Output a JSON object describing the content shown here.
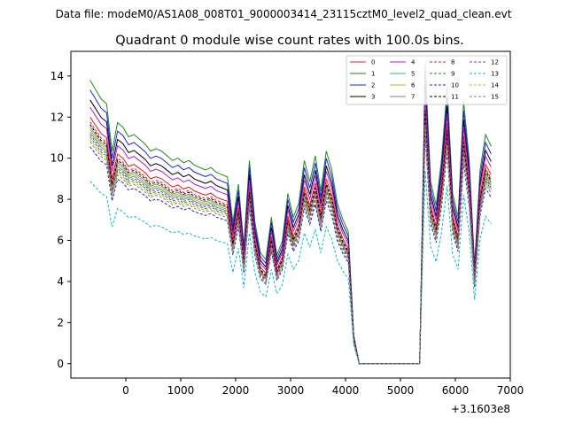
{
  "chart_data": {
    "type": "line",
    "supertitle": "Data file: modeM0/AS1A08_008T01_9000003414_23115cztM0_level2_quad_clean.evt",
    "title": "Quadrant 0 module wise count rates with 100.0s bins.",
    "xlabel": "",
    "ylabel": "",
    "x_offset_label": "+3.1603e8",
    "xlim": [
      -1000,
      7000
    ],
    "ylim": [
      -0.7,
      15.2
    ],
    "x_ticks": [
      0,
      1000,
      2000,
      3000,
      4000,
      5000,
      6000,
      7000
    ],
    "y_ticks": [
      0,
      2,
      4,
      6,
      8,
      10,
      12,
      14
    ],
    "x": [
      -650,
      -550,
      -450,
      -350,
      -250,
      -150,
      -50,
      50,
      150,
      250,
      350,
      450,
      550,
      650,
      750,
      850,
      950,
      1050,
      1150,
      1250,
      1350,
      1450,
      1550,
      1650,
      1750,
      1850,
      1950,
      2050,
      2150,
      2250,
      2350,
      2450,
      2550,
      2650,
      2750,
      2850,
      2950,
      3050,
      3150,
      3250,
      3350,
      3450,
      3550,
      3650,
      3750,
      3850,
      3950,
      4050,
      4150,
      4250,
      4350,
      4450,
      4550,
      4650,
      4750,
      4850,
      4950,
      5050,
      5150,
      5250,
      5350,
      5450,
      5550,
      5650,
      5750,
      5850,
      5950,
      6050,
      6150,
      6250,
      6350,
      6450,
      6550,
      6650
    ],
    "baseline": [
      12.0,
      11.6,
      11.2,
      11.0,
      9.0,
      10.2,
      10.0,
      9.6,
      9.7,
      9.5,
      9.3,
      9.0,
      9.1,
      9.0,
      8.8,
      8.6,
      8.7,
      8.5,
      8.6,
      8.4,
      8.3,
      8.2,
      8.3,
      8.1,
      8.0,
      7.9,
      6.0,
      7.6,
      5.0,
      8.6,
      6.0,
      4.7,
      4.4,
      6.2,
      4.6,
      5.2,
      7.2,
      6.2,
      6.8,
      8.6,
      7.7,
      8.8,
      7.3,
      9.0,
      8.2,
      6.8,
      6.1,
      5.6,
      1.2,
      0.0,
      0.0,
      0.0,
      0.0,
      0.0,
      0.0,
      0.0,
      0.0,
      0.0,
      0.0,
      0.0,
      0.0,
      12.7,
      7.7,
      6.7,
      8.7,
      11.7,
      7.2,
      6.2,
      11.1,
      8.7,
      4.2,
      8.2,
      9.7,
      9.2
    ],
    "legend": {
      "position": "top-right",
      "columns": 4
    },
    "series": [
      {
        "name": "0",
        "color": "#e41a1c",
        "dash": "solid",
        "offset": 0.0
      },
      {
        "name": "1",
        "color": "#1a8c1a",
        "dash": "solid",
        "offset": 1.5
      },
      {
        "name": "2",
        "color": "#1f1fe0",
        "dash": "solid",
        "offset": 1.1
      },
      {
        "name": "3",
        "color": "#000000",
        "dash": "solid",
        "offset": 0.7
      },
      {
        "name": "4",
        "color": "#b01cd9",
        "dash": "solid",
        "offset": 0.4
      },
      {
        "name": "5",
        "color": "#20b2aa",
        "dash": "solid",
        "offset": -0.6
      },
      {
        "name": "6",
        "color": "#c9b400",
        "dash": "solid",
        "offset": -0.5
      },
      {
        "name": "7",
        "color": "#808080",
        "dash": "solid",
        "offset": -0.4
      },
      {
        "name": "8",
        "color": "#e41a1c",
        "dash": "dashed",
        "offset": -0.2
      },
      {
        "name": "9",
        "color": "#1a8c1a",
        "dash": "dashed",
        "offset": -0.8
      },
      {
        "name": "10",
        "color": "#1f1fe0",
        "dash": "dashed",
        "offset": -1.2
      },
      {
        "name": "11",
        "color": "#000000",
        "dash": "dashed",
        "offset": -0.3
      },
      {
        "name": "12",
        "color": "#b01cd9",
        "dash": "dashed",
        "offset": -0.7
      },
      {
        "name": "13",
        "color": "#00bcd4",
        "dash": "dashed",
        "offset": -2.6
      },
      {
        "name": "14",
        "color": "#c9b400",
        "dash": "dashed",
        "offset": -0.9
      },
      {
        "name": "15",
        "color": "#808080",
        "dash": "dashed",
        "offset": -1.0
      }
    ]
  }
}
